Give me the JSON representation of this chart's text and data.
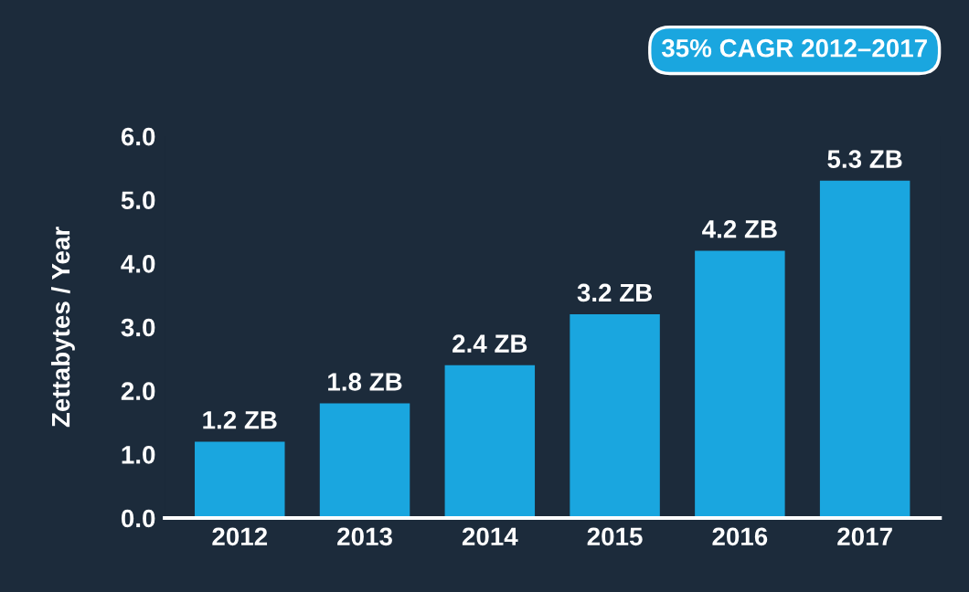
{
  "chart_data": {
    "type": "bar",
    "ylabel": "Zettabytes / Year",
    "categories": [
      "2012",
      "2013",
      "2014",
      "2015",
      "2016",
      "2017"
    ],
    "values": [
      1.2,
      1.8,
      2.4,
      3.2,
      4.2,
      5.3
    ],
    "value_labels": [
      "1.2 ZB",
      "1.8 ZB",
      "2.4 ZB",
      "3.2 ZB",
      "4.2 ZB",
      "5.3 ZB"
    ],
    "color": "#1aa6df",
    "ylim": [
      0,
      6
    ],
    "yticks": [
      {
        "value": 0,
        "label": "0.0"
      },
      {
        "value": 1,
        "label": "1.0"
      },
      {
        "value": 2,
        "label": "2.0"
      },
      {
        "value": 3,
        "label": "3.0"
      },
      {
        "value": 4,
        "label": "4.0"
      },
      {
        "value": 5,
        "label": "5.0"
      },
      {
        "value": 6,
        "label": "6.0"
      }
    ],
    "annotations": [
      "35% CAGR 2012–2017"
    ]
  }
}
